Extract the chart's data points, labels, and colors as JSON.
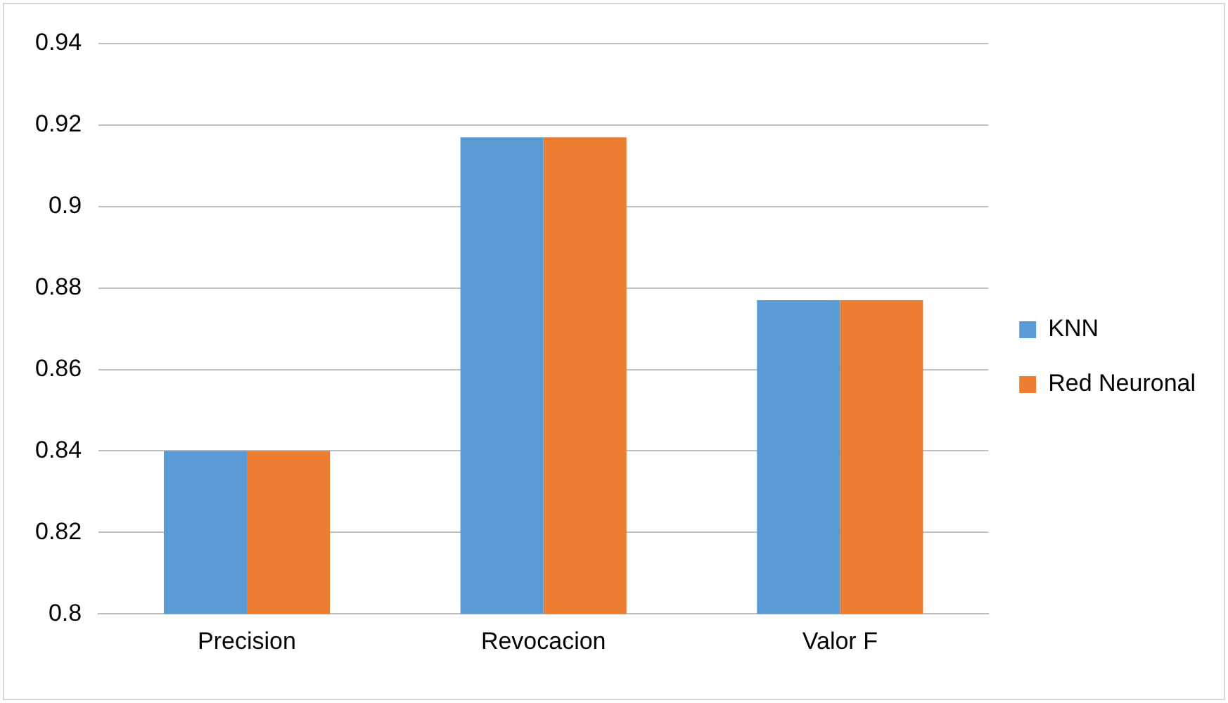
{
  "chart_data": {
    "type": "bar",
    "categories": [
      "Precision",
      "Revocacion",
      "Valor F"
    ],
    "series": [
      {
        "name": "KNN",
        "color": "#5b9bd5",
        "values": [
          0.84,
          0.917,
          0.877
        ]
      },
      {
        "name": "Red Neuronal",
        "color": "#ed7d31",
        "values": [
          0.84,
          0.917,
          0.877
        ]
      }
    ],
    "ylim": [
      0.8,
      0.94
    ],
    "yticks": [
      0.8,
      0.82,
      0.84,
      0.86,
      0.88,
      0.9,
      0.92,
      0.94
    ],
    "grid": "y",
    "legend": "right"
  }
}
